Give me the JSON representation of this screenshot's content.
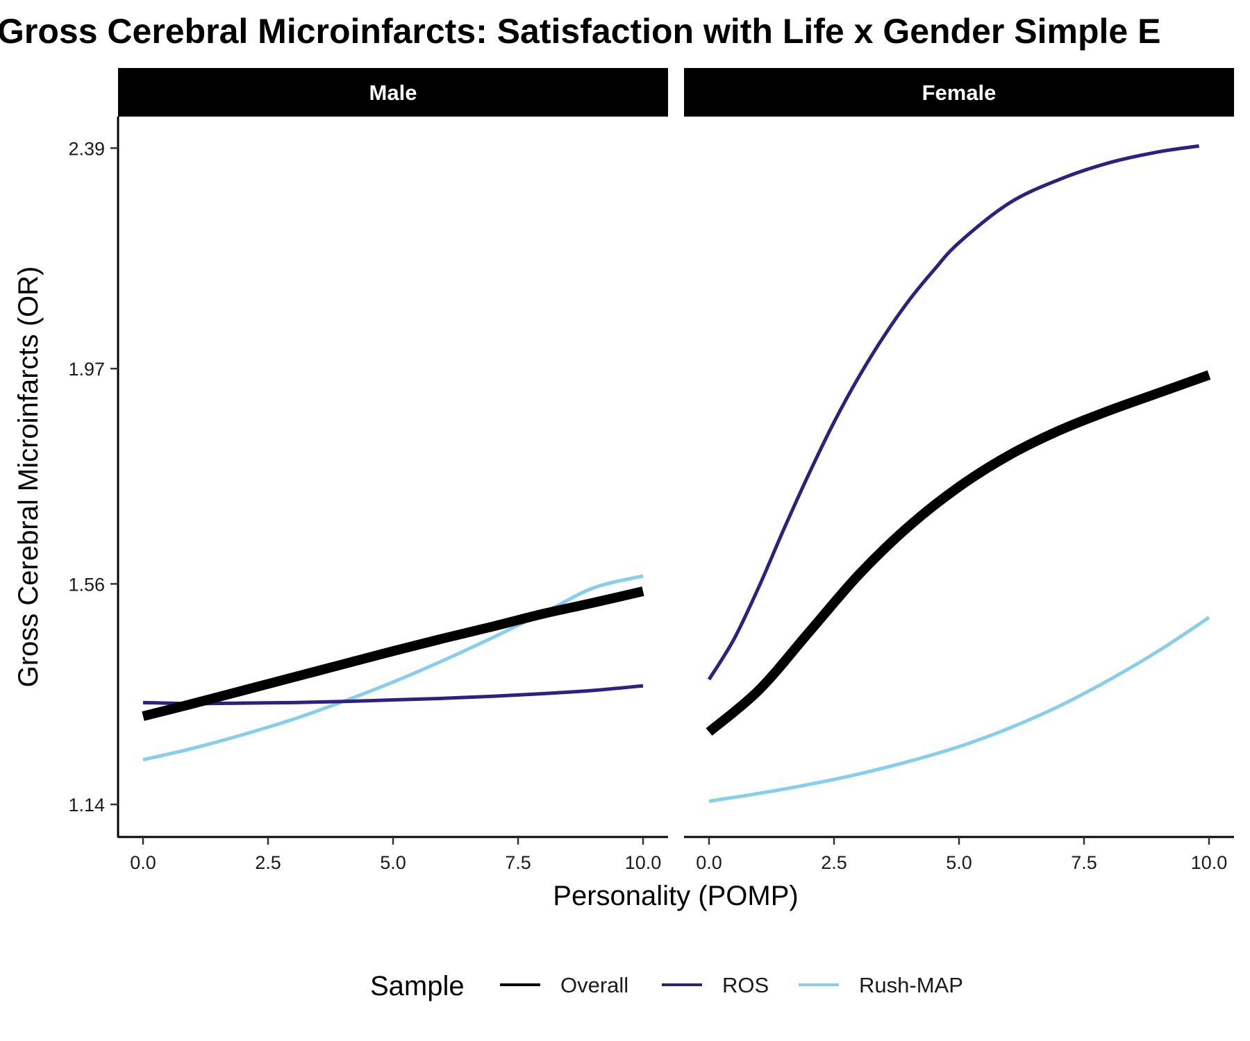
{
  "chart_data": {
    "type": "line",
    "title": "Gross Cerebral Microinfarcts: Satisfaction with Life x Gender Simple E",
    "xlabel": "Personality (POMP)",
    "ylabel": "Gross Cerebral Microinfarcts (OR)",
    "xlim": [
      -0.5,
      10.5
    ],
    "ylim": [
      1.078,
      2.45
    ],
    "x_ticks": [
      0,
      2.5,
      5,
      7.5,
      10
    ],
    "x_tick_labels": [
      "0.0",
      "2.5",
      "5.0",
      "7.5",
      "10.0"
    ],
    "y_ticks": [
      1.14,
      1.56,
      1.97,
      2.39
    ],
    "y_tick_labels": [
      "1.14",
      "1.56",
      "1.97",
      "2.39"
    ],
    "grid": false,
    "legend": {
      "title": "Sample",
      "position": "bottom",
      "entries": [
        "Overall",
        "ROS",
        "Rush-MAP"
      ]
    },
    "panels": [
      {
        "label": "Male",
        "series": [
          {
            "name": "Overall",
            "color": "#000000",
            "x": [
              0,
              1,
              2,
              3,
              4,
              5,
              6,
              7,
              8,
              9,
              10
            ],
            "y": [
              1.308,
              1.332,
              1.357,
              1.382,
              1.407,
              1.432,
              1.456,
              1.479,
              1.503,
              1.524,
              1.546
            ]
          },
          {
            "name": "ROS",
            "color": "#2e1f80",
            "x": [
              0,
              1,
              2,
              3,
              4,
              5,
              6,
              7,
              8,
              9,
              10
            ],
            "y": [
              1.334,
              1.332,
              1.333,
              1.334,
              1.336,
              1.339,
              1.342,
              1.346,
              1.351,
              1.357,
              1.366
            ]
          },
          {
            "name": "Rush-MAP",
            "color": "#87ceeb",
            "x": [
              0,
              1,
              2,
              3,
              4,
              5,
              6,
              7,
              8,
              9,
              10
            ],
            "y": [
              1.225,
              1.247,
              1.273,
              1.302,
              1.336,
              1.373,
              1.414,
              1.458,
              1.504,
              1.552,
              1.575
            ]
          }
        ]
      },
      {
        "label": "Female",
        "series": [
          {
            "name": "Overall",
            "color": "#000000",
            "x": [
              0,
              1,
              2,
              3,
              4,
              5,
              6,
              7,
              8,
              9,
              10
            ],
            "y": [
              1.278,
              1.358,
              1.468,
              1.578,
              1.67,
              1.745,
              1.805,
              1.852,
              1.89,
              1.924,
              1.958
            ]
          },
          {
            "name": "ROS",
            "color": "#2e1f80",
            "x": [
              0,
              0.5,
              1,
              1.5,
              2,
              2.5,
              3,
              3.5,
              4,
              4.5,
              5,
              6,
              7,
              8,
              9,
              9.8
            ],
            "y": [
              1.378,
              1.455,
              1.555,
              1.665,
              1.77,
              1.868,
              1.955,
              2.032,
              2.1,
              2.158,
              2.21,
              2.285,
              2.33,
              2.362,
              2.383,
              2.394
            ]
          },
          {
            "name": "Rush-MAP",
            "color": "#87ceeb",
            "x": [
              0,
              1,
              2,
              3,
              4,
              5,
              6,
              7,
              8,
              9,
              10
            ],
            "y": [
              1.146,
              1.161,
              1.178,
              1.198,
              1.222,
              1.25,
              1.285,
              1.327,
              1.377,
              1.433,
              1.496
            ]
          }
        ]
      }
    ]
  }
}
